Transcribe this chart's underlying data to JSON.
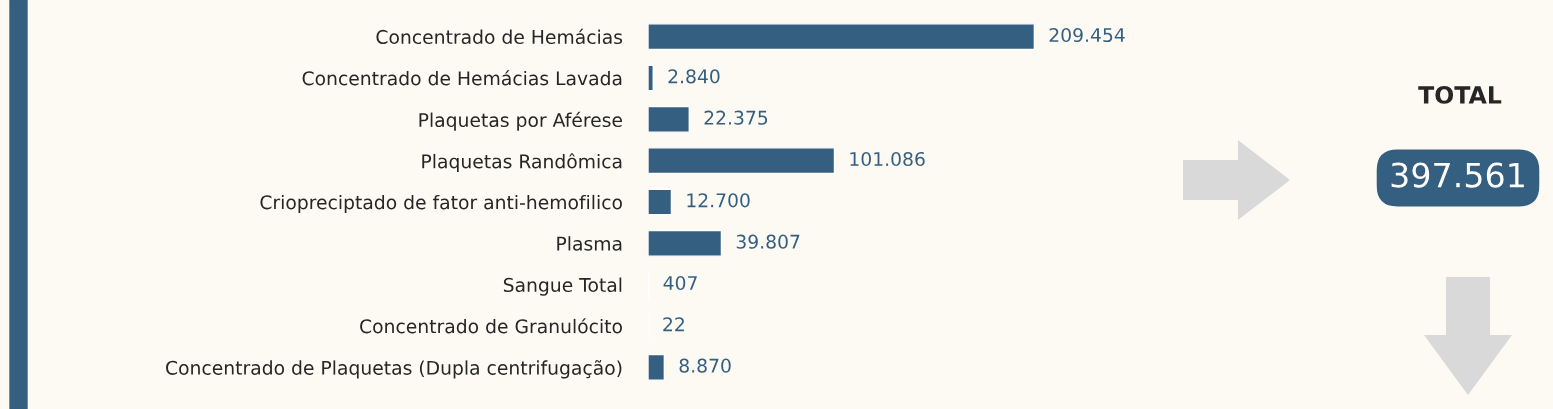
{
  "chart_data": {
    "type": "bar",
    "orientation": "horizontal",
    "categories": [
      "Concentrado de Hemácias",
      "Concentrado de Hemácias Lavada",
      "Plaquetas por Aférese",
      "Plaquetas Randômica",
      "Criopreciptado de fator anti-hemofilico",
      "Plasma",
      "Sangue Total",
      "Concentrado de Granulócito",
      "Concentrado de Plaquetas (Dupla centrifugação)"
    ],
    "values": [
      209454,
      2840,
      22375,
      101086,
      12700,
      39807,
      407,
      22,
      8870
    ],
    "value_labels": [
      "209.454",
      "2.840",
      "22.375",
      "101.086",
      "12.700",
      "39.807",
      "407",
      "22",
      "8.870"
    ],
    "color": "#345f80",
    "annotations": [
      "TOTAL",
      "397.561"
    ]
  }
}
